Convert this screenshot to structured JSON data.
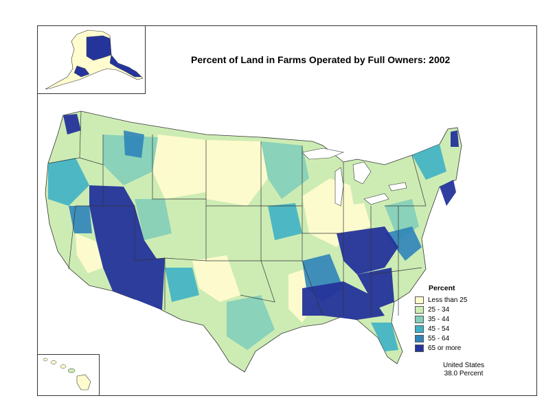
{
  "title": "Percent of Land in Farms Operated by Full Owners:  2002",
  "legend": {
    "title": "Percent",
    "items": [
      {
        "label": "Less than 25",
        "color": "#fffccf"
      },
      {
        "label": "25 - 34",
        "color": "#cdecb4"
      },
      {
        "label": "35 - 44",
        "color": "#83cfb9"
      },
      {
        "label": "45 - 54",
        "color": "#3fb2c4"
      },
      {
        "label": "55 - 64",
        "color": "#2f84b9"
      },
      {
        "label": "65 or more",
        "color": "#25349b"
      }
    ]
  },
  "summary": {
    "line1": "United States",
    "line2": "38.0 Percent"
  }
}
